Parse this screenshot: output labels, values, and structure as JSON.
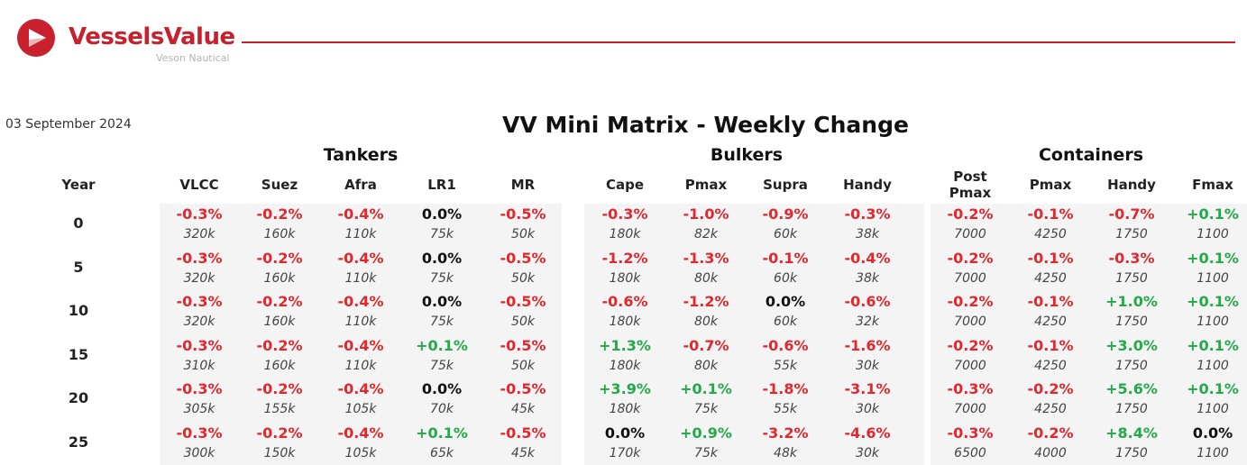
{
  "brand": {
    "name": "VesselsValue",
    "subtitle": "Veson Nautical",
    "accent_color": "#c8202d",
    "icon": "vesselsvalue-logo-icon"
  },
  "report": {
    "date": "03 September 2024",
    "title": "VV Mini Matrix - Weekly Change"
  },
  "colors": {
    "negative": "#e0282e",
    "positive": "#23a84a",
    "zero": "#111111"
  },
  "year_header": "Year",
  "groups": [
    {
      "name": "Tankers",
      "columns": [
        {
          "label": "VLCC"
        },
        {
          "label": "Suez"
        },
        {
          "label": "Afra"
        },
        {
          "label": "LR1"
        },
        {
          "label": "MR"
        }
      ]
    },
    {
      "name": "Bulkers",
      "columns": [
        {
          "label": "Cape"
        },
        {
          "label": "Pmax"
        },
        {
          "label": "Supra"
        },
        {
          "label": "Handy"
        }
      ]
    },
    {
      "name": "Containers",
      "columns": [
        {
          "label": "Post\nPmax"
        },
        {
          "label": "Pmax"
        },
        {
          "label": "Handy"
        },
        {
          "label": "Fmax"
        }
      ]
    }
  ],
  "rows": [
    {
      "year": "0",
      "changes": [
        "-0.3%",
        "-0.2%",
        "-0.4%",
        "0.0%",
        "-0.5%",
        "-0.3%",
        "-1.0%",
        "-0.9%",
        "-0.3%",
        "-0.2%",
        "-0.1%",
        "-0.7%",
        "+0.1%"
      ],
      "values": [
        "320k",
        "160k",
        "110k",
        "75k",
        "50k",
        "180k",
        "82k",
        "60k",
        "38k",
        "7000",
        "4250",
        "1750",
        "1100"
      ]
    },
    {
      "year": "5",
      "changes": [
        "-0.3%",
        "-0.2%",
        "-0.4%",
        "0.0%",
        "-0.5%",
        "-1.2%",
        "-1.3%",
        "-0.1%",
        "-0.4%",
        "-0.2%",
        "-0.1%",
        "-0.3%",
        "+0.1%"
      ],
      "values": [
        "320k",
        "160k",
        "110k",
        "75k",
        "50k",
        "180k",
        "80k",
        "60k",
        "38k",
        "7000",
        "4250",
        "1750",
        "1100"
      ]
    },
    {
      "year": "10",
      "changes": [
        "-0.3%",
        "-0.2%",
        "-0.4%",
        "0.0%",
        "-0.5%",
        "-0.6%",
        "-1.2%",
        "0.0%",
        "-0.6%",
        "-0.2%",
        "-0.1%",
        "+1.0%",
        "+0.1%"
      ],
      "values": [
        "320k",
        "160k",
        "110k",
        "75k",
        "50k",
        "180k",
        "80k",
        "60k",
        "32k",
        "7000",
        "4250",
        "1750",
        "1100"
      ]
    },
    {
      "year": "15",
      "changes": [
        "-0.3%",
        "-0.2%",
        "-0.4%",
        "+0.1%",
        "-0.5%",
        "+1.3%",
        "-0.7%",
        "-0.6%",
        "-1.6%",
        "-0.2%",
        "-0.1%",
        "+3.0%",
        "+0.1%"
      ],
      "values": [
        "310k",
        "160k",
        "110k",
        "75k",
        "50k",
        "180k",
        "80k",
        "55k",
        "30k",
        "7000",
        "4250",
        "1750",
        "1100"
      ]
    },
    {
      "year": "20",
      "changes": [
        "-0.3%",
        "-0.2%",
        "-0.4%",
        "0.0%",
        "-0.5%",
        "+3.9%",
        "+0.1%",
        "-1.8%",
        "-3.1%",
        "-0.3%",
        "-0.2%",
        "+5.6%",
        "+0.1%"
      ],
      "values": [
        "305k",
        "155k",
        "105k",
        "70k",
        "45k",
        "180k",
        "75k",
        "55k",
        "30k",
        "7000",
        "4250",
        "1750",
        "1100"
      ]
    },
    {
      "year": "25",
      "changes": [
        "-0.3%",
        "-0.2%",
        "-0.4%",
        "+0.1%",
        "-0.5%",
        "0.0%",
        "+0.9%",
        "-3.2%",
        "-4.6%",
        "-0.3%",
        "-0.2%",
        "+8.4%",
        "0.0%"
      ],
      "values": [
        "300k",
        "150k",
        "105k",
        "65k",
        "45k",
        "170k",
        "75k",
        "48k",
        "30k",
        "6500",
        "4000",
        "1750",
        "1100"
      ]
    }
  ]
}
